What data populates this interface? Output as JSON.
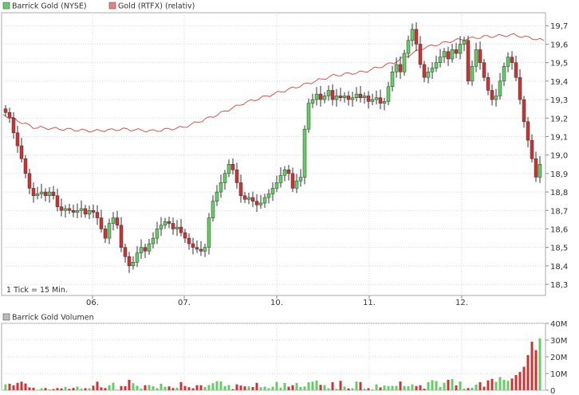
{
  "legend": {
    "series1": "Barrick Gold (NYSE)",
    "series2": "Gold (RTFX) (relativ)",
    "volume": "Barrick Gold Volumen"
  },
  "note": "1 Tick = 15 Min.",
  "colors": {
    "up": "#66cc66",
    "down": "#cc3333",
    "gold_line": "#e05050",
    "grid": "#d8d8d8",
    "frame": "#aaaaaa"
  },
  "chart_data": [
    {
      "type": "candlestick",
      "title": "",
      "series": [
        {
          "name": "Barrick Gold (NYSE)"
        },
        {
          "name": "Gold (RTFX) (relativ)"
        }
      ],
      "x_labels": [
        "06.",
        "07.",
        "10.",
        "11.",
        "12."
      ],
      "y_ticks": [
        18.3,
        18.4,
        18.5,
        18.6,
        18.7,
        18.8,
        18.9,
        19.0,
        19.1,
        19.2,
        19.3,
        19.4,
        19.5,
        19.6,
        19.7
      ],
      "y_tick_labels": [
        "18,3",
        "18,4",
        "18,5",
        "18,6",
        "18,7",
        "18,8",
        "18,9",
        "19,0",
        "19,1",
        "19,2",
        "19,3",
        "19,4",
        "19,5",
        "19,6",
        "19,7"
      ],
      "ylim": [
        18.24,
        19.77
      ],
      "grid": true,
      "legend_position": "top-left",
      "closes": [
        19.23,
        19.2,
        19.12,
        19.05,
        18.98,
        18.9,
        18.82,
        18.78,
        18.79,
        18.8,
        18.78,
        18.8,
        18.78,
        18.72,
        18.7,
        18.71,
        18.7,
        18.69,
        18.7,
        18.71,
        18.68,
        18.7,
        18.69,
        18.66,
        18.6,
        18.55,
        18.63,
        18.66,
        18.62,
        18.5,
        18.45,
        18.4,
        18.42,
        18.47,
        18.5,
        18.48,
        18.52,
        18.55,
        18.6,
        18.62,
        18.64,
        18.63,
        18.6,
        18.61,
        18.58,
        18.55,
        18.52,
        18.5,
        18.49,
        18.48,
        18.5,
        18.66,
        18.75,
        18.8,
        18.85,
        18.9,
        18.95,
        18.92,
        18.85,
        18.78,
        18.76,
        18.77,
        18.75,
        18.73,
        18.74,
        18.77,
        18.79,
        18.82,
        18.85,
        18.89,
        18.92,
        18.9,
        18.82,
        18.86,
        18.88,
        19.14,
        19.28,
        19.3,
        19.33,
        19.3,
        19.32,
        19.35,
        19.3,
        19.32,
        19.31,
        19.32,
        19.3,
        19.31,
        19.33,
        19.31,
        19.32,
        19.29,
        19.3,
        19.31,
        19.28,
        19.29,
        19.37,
        19.45,
        19.49,
        19.45,
        19.55,
        19.62,
        19.68,
        19.6,
        19.49,
        19.42,
        19.45,
        19.47,
        19.5,
        19.53,
        19.56,
        19.52,
        19.57,
        19.55,
        19.6,
        19.62,
        19.4,
        19.48,
        19.57,
        19.5,
        19.42,
        19.35,
        19.3,
        19.32,
        19.4,
        19.48,
        19.53,
        19.5,
        19.42,
        19.3,
        19.18,
        19.08,
        18.98,
        18.88,
        18.95
      ],
      "gold_relative": [
        19.22,
        19.15,
        19.14,
        19.13,
        19.14,
        19.13,
        19.15,
        19.21,
        19.28,
        19.33,
        19.38,
        19.43,
        19.45,
        19.5,
        19.58,
        19.62,
        19.64,
        19.65,
        19.62
      ],
      "volume": {
        "yticks": [
          0,
          10,
          20,
          30,
          40
        ],
        "ytick_labels": [
          "0",
          "10M",
          "20M",
          "30M",
          "40M"
        ],
        "ylim": [
          0,
          40
        ],
        "unit": "M",
        "values": [
          3.5,
          3.9,
          2.9,
          4.4,
          5.1,
          4.0,
          1.7,
          1.5,
          0.3,
          1.2,
          1.3,
          0.5,
          0.7,
          1.3,
          1.1,
          2.0,
          0.8,
          1.4,
          2.2,
          0.9,
          1.2,
          1.2,
          2.7,
          5.1,
          1.7,
          1.3,
          3.0,
          4.5,
          0.2,
          2.5,
          2.4,
          6.2,
          4.2,
          2.7,
          1.0,
          3.0,
          3.1,
          2.4,
          1.2,
          3.8,
          2.1,
          2.3,
          1.3,
          1.5,
          4.9,
          2.5,
          1.8,
          1.2,
          3.0,
          3.0,
          1.9,
          3.1,
          4.2,
          5.4,
          5.3,
          2.5,
          3.1,
          0.6,
          3.5,
          2.8,
          2.3,
          2.3,
          1.9,
          4.4,
          1.8,
          2.2,
          1.2,
          2.1,
          5.0,
          1.5,
          4.3,
          2.1,
          3.0,
          4.3,
          1.9,
          2.2,
          4.8,
          5.1,
          5.8,
          3.2,
          3.1,
          1.2,
          4.8,
          0.8,
          5.6,
          2.2,
          1.1,
          1.2,
          5.2,
          4.9,
          1.0,
          1.2,
          0.5,
          3.5,
          1.7,
          2.8,
          2.5,
          2.6,
          2.6,
          5.2,
          2.5,
          2.4,
          3.5,
          2.5,
          3.0,
          0.9,
          4.8,
          6.0,
          5.5,
          1.9,
          4.4,
          6.2,
          6.7,
          2.9,
          5.2,
          1.0,
          1.3,
          1.5,
          3.4,
          4.8,
          2.1,
          5.9,
          6.8,
          5.0,
          7.9,
          6.2,
          5.6,
          7.0,
          9.1,
          10.9,
          14.0,
          21.0,
          29.0,
          24.0,
          31.0
        ]
      }
    }
  ]
}
